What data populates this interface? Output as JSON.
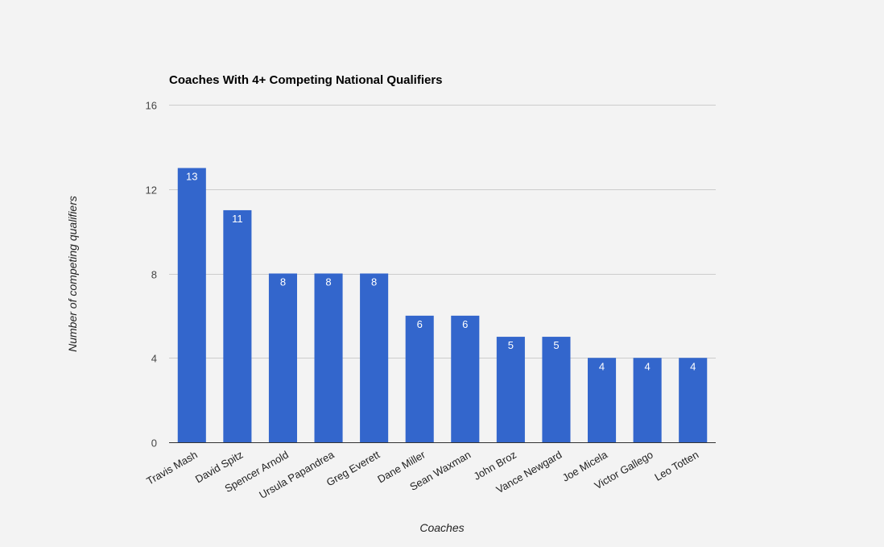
{
  "chart_data": {
    "type": "bar",
    "title": "Coaches With 4+ Competing National Qualifiers",
    "xlabel": "Coaches",
    "ylabel": "Number of competing qualifiers",
    "categories": [
      "Travis Mash",
      "David Spitz",
      "Spencer Arnold",
      "Ursula Papandrea",
      "Greg Everett",
      "Dane Miller",
      "Sean Waxman",
      "John Broz",
      "Vance Newgard",
      "Joe Micela",
      "Victor Gallego",
      "Leo Totten"
    ],
    "values": [
      13,
      11,
      8,
      8,
      8,
      6,
      6,
      5,
      5,
      4,
      4,
      4
    ],
    "ylim": [
      0,
      16
    ],
    "yticks": [
      0,
      4,
      8,
      12,
      16
    ],
    "grid": true,
    "legend": "none",
    "bar_color": "#3366cc",
    "data_labels": true
  }
}
